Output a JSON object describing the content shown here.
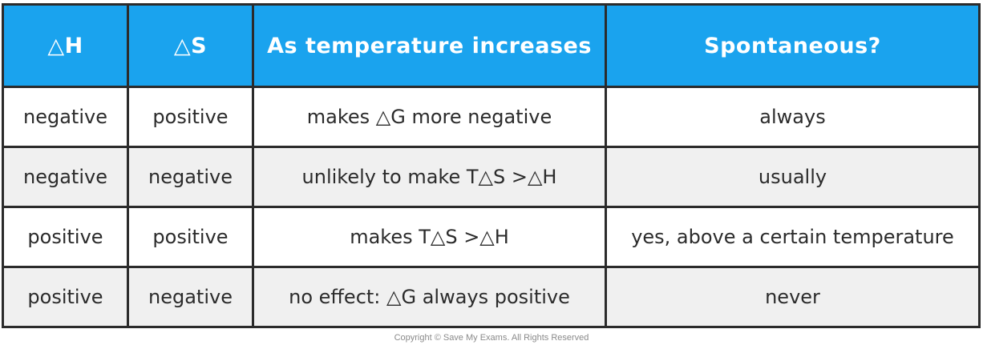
{
  "table": {
    "headers": [
      "△H",
      "△S",
      "As temperature increases",
      "Spontaneous?"
    ],
    "rows": [
      [
        "negative",
        "positive",
        "makes △G more negative",
        "always"
      ],
      [
        "negative",
        "negative",
        "unlikely to make T△S >△H",
        "usually"
      ],
      [
        "positive",
        "positive",
        "makes T△S >△H",
        "yes, above a certain temperature"
      ],
      [
        "positive",
        "negative",
        "no effect: △G always positive",
        "never"
      ]
    ]
  },
  "footer": {
    "copyright": "Copyright © Save My Exams. All Rights Reserved"
  },
  "colors": {
    "header_bg": "#1aa3ee",
    "header_text": "#ffffff",
    "border": "#2b2b2b",
    "row_shade": "#f0f0f0"
  }
}
